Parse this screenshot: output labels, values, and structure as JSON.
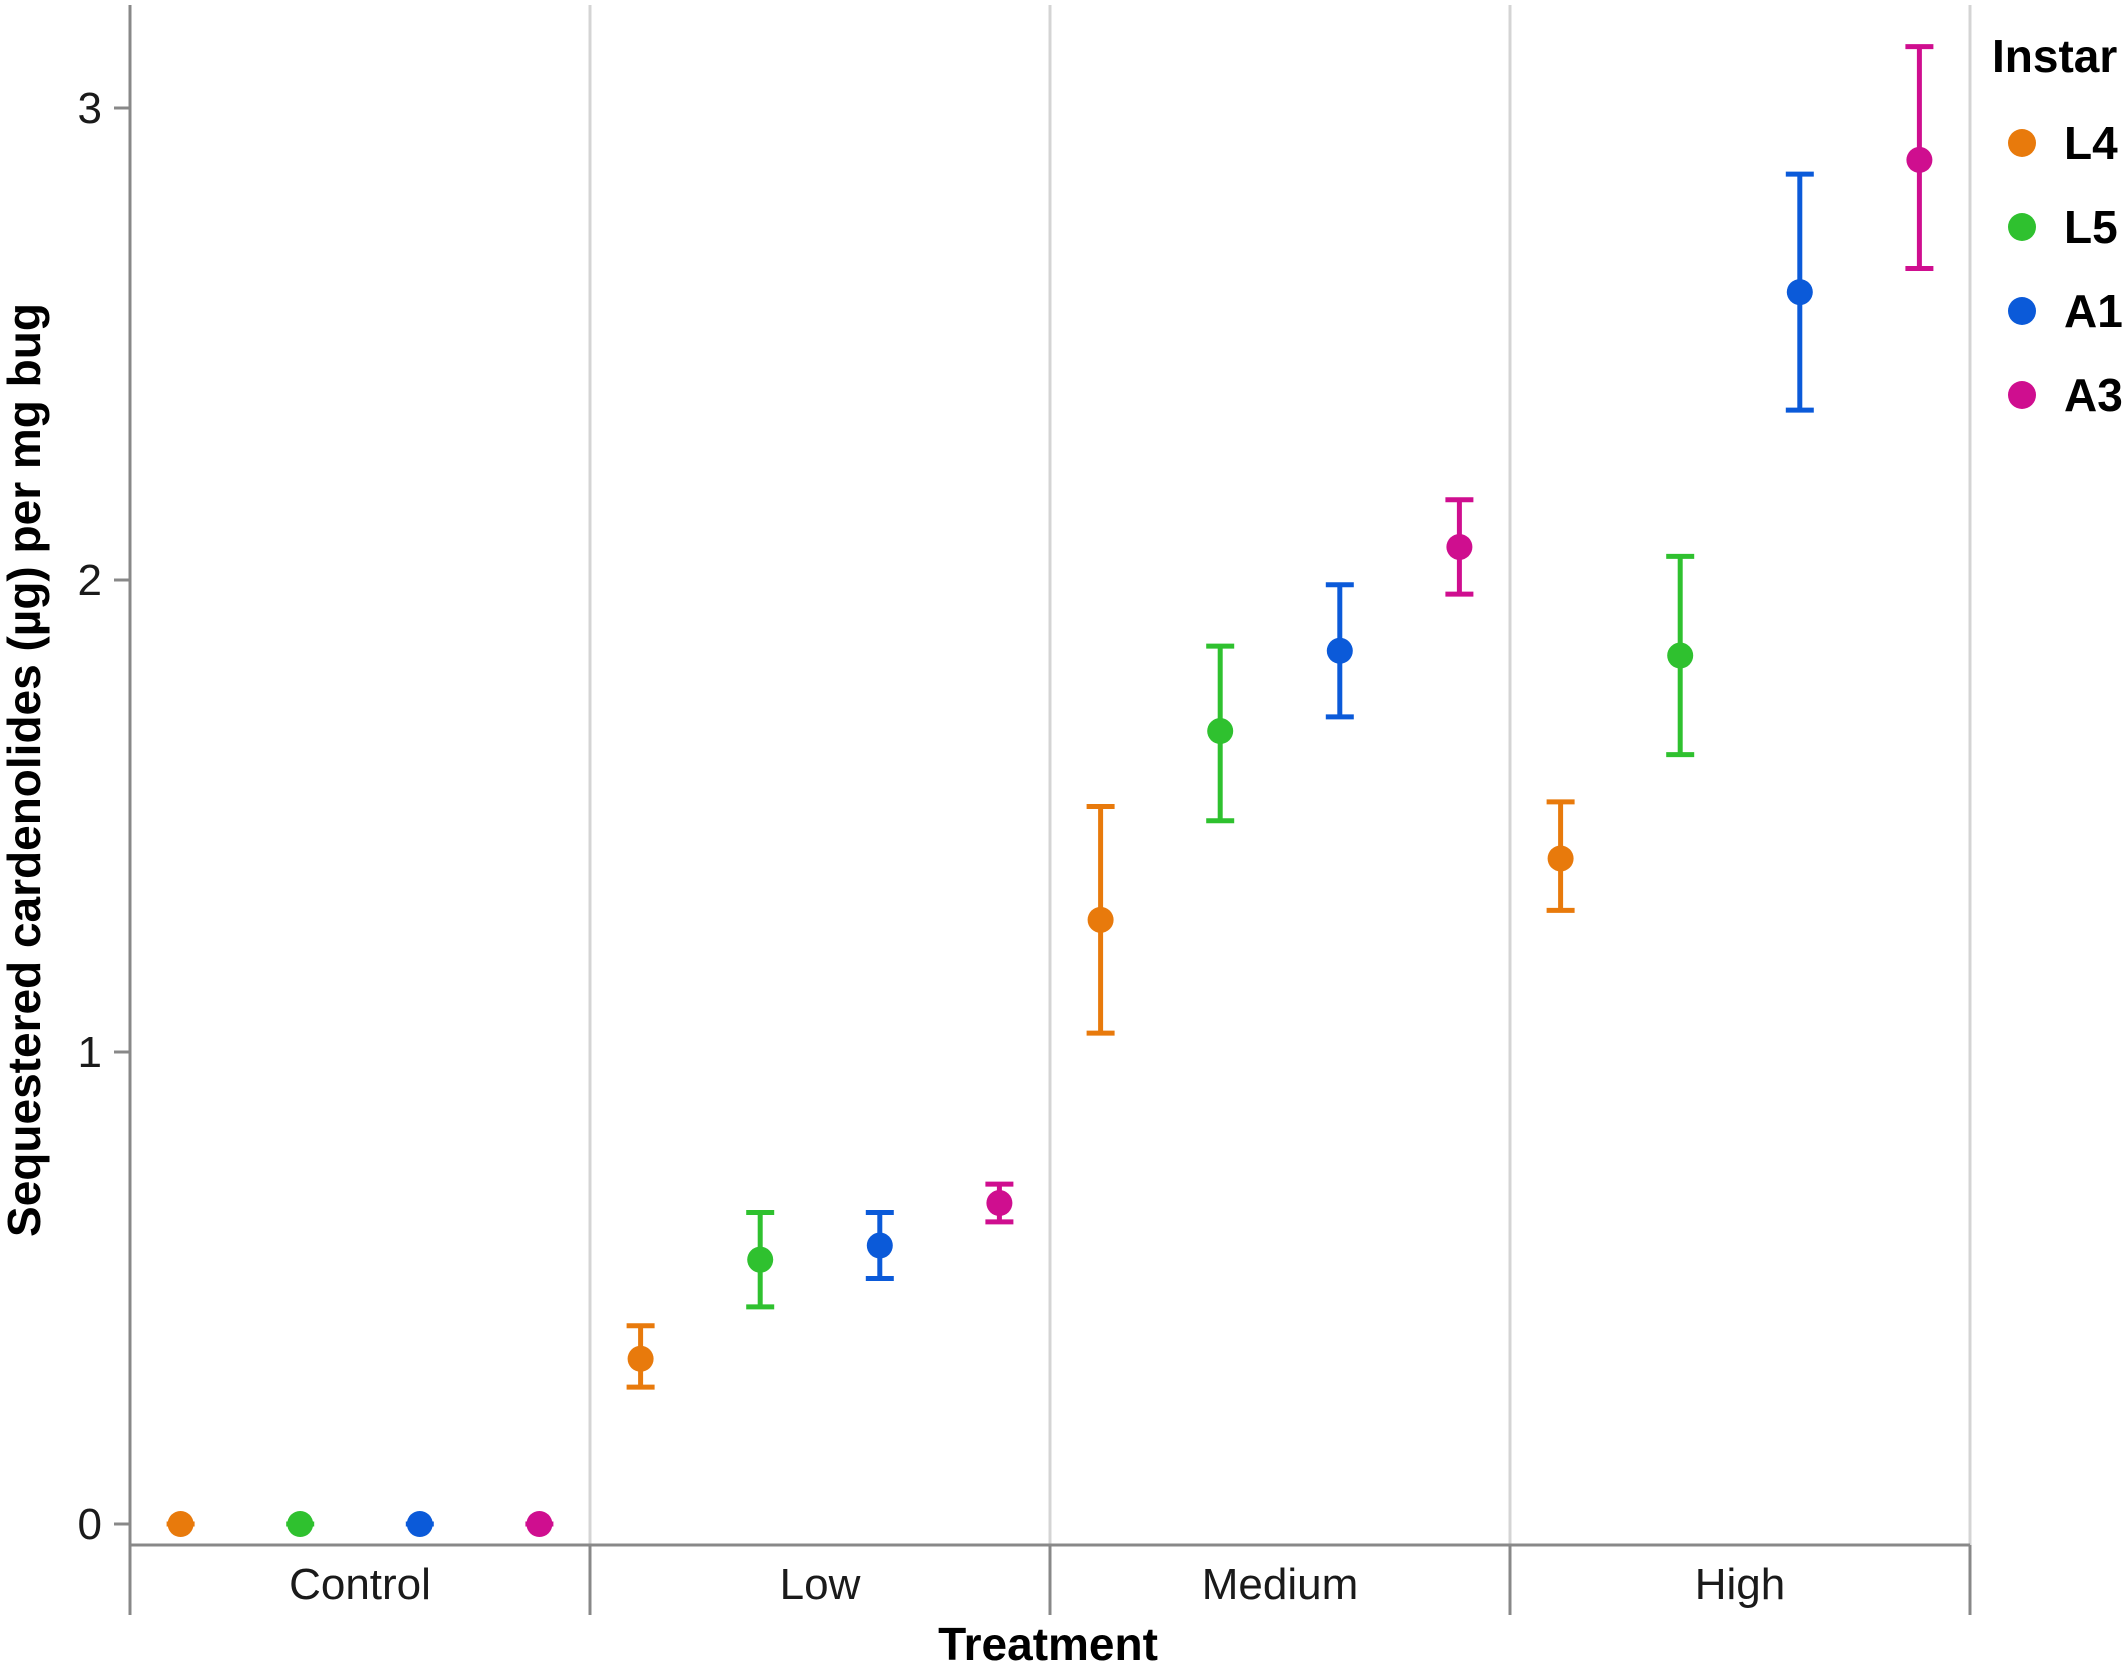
{
  "chart_data": {
    "type": "scatter",
    "title": "",
    "xlabel": "Treatment",
    "ylabel": "Sequestered cardenolides (µg) per mg bug",
    "categories": [
      "Control",
      "Low",
      "Medium",
      "High"
    ],
    "ylim": [
      -0.05,
      3.2
    ],
    "yticks": [
      "0",
      "1",
      "2",
      "3"
    ],
    "legend": {
      "title": "Instar",
      "placement": "right"
    },
    "series": [
      {
        "name": "L4",
        "color": "#e87a0c",
        "points": [
          {
            "category": "Control",
            "y": 0.0,
            "low": 0.0,
            "high": 0.0
          },
          {
            "category": "Low",
            "y": 0.35,
            "low": 0.29,
            "high": 0.42
          },
          {
            "category": "Medium",
            "y": 1.28,
            "low": 1.04,
            "high": 1.52
          },
          {
            "category": "High",
            "y": 1.41,
            "low": 1.3,
            "high": 1.53
          }
        ]
      },
      {
        "name": "L5",
        "color": "#2fc12f",
        "points": [
          {
            "category": "Control",
            "y": 0.0,
            "low": 0.0,
            "high": 0.0
          },
          {
            "category": "Low",
            "y": 0.56,
            "low": 0.46,
            "high": 0.66
          },
          {
            "category": "Medium",
            "y": 1.68,
            "low": 1.49,
            "high": 1.86
          },
          {
            "category": "High",
            "y": 1.84,
            "low": 1.63,
            "high": 2.05
          }
        ]
      },
      {
        "name": "A1",
        "color": "#0b5ad9",
        "points": [
          {
            "category": "Control",
            "y": 0.0,
            "low": 0.0,
            "high": 0.0
          },
          {
            "category": "Low",
            "y": 0.59,
            "low": 0.52,
            "high": 0.66
          },
          {
            "category": "Medium",
            "y": 1.85,
            "low": 1.71,
            "high": 1.99
          },
          {
            "category": "High",
            "y": 2.61,
            "low": 2.36,
            "high": 2.86
          }
        ]
      },
      {
        "name": "A3",
        "color": "#cf0e8f",
        "points": [
          {
            "category": "Control",
            "y": 0.0,
            "low": 0.0,
            "high": 0.0
          },
          {
            "category": "Low",
            "y": 0.68,
            "low": 0.64,
            "high": 0.72
          },
          {
            "category": "Medium",
            "y": 2.07,
            "low": 1.97,
            "high": 2.17
          },
          {
            "category": "High",
            "y": 2.89,
            "low": 2.66,
            "high": 3.13
          }
        ]
      }
    ]
  }
}
